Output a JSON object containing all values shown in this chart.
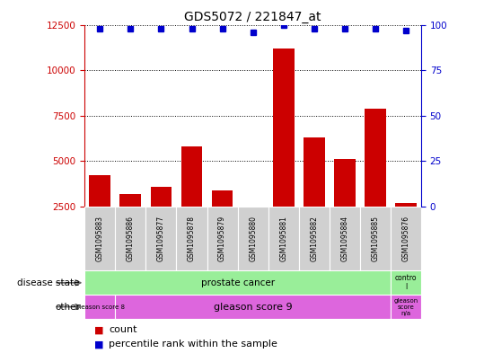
{
  "title": "GDS5072 / 221847_at",
  "samples": [
    "GSM1095883",
    "GSM1095886",
    "GSM1095877",
    "GSM1095878",
    "GSM1095879",
    "GSM1095880",
    "GSM1095881",
    "GSM1095882",
    "GSM1095884",
    "GSM1095885",
    "GSM1095876"
  ],
  "count_values": [
    4200,
    3200,
    3600,
    5800,
    3400,
    2400,
    11200,
    6300,
    5100,
    7900,
    2700
  ],
  "percentile_values": [
    98,
    98,
    98,
    98,
    98,
    96,
    100,
    98,
    98,
    98,
    97
  ],
  "ylim_left": [
    2500,
    12500
  ],
  "ylim_right": [
    0,
    100
  ],
  "yticks_left": [
    2500,
    5000,
    7500,
    10000,
    12500
  ],
  "yticks_right": [
    0,
    25,
    50,
    75,
    100
  ],
  "bar_color": "#cc0000",
  "dot_color": "#0000cc",
  "background_color": "#ffffff",
  "disease_state_label": "prostate cancer",
  "control_label": "contro\nl",
  "gleason8_label": "gleason score 8",
  "gleason9_label": "gleason score 9",
  "gleason_na_label": "gleason\nscore\nn/a",
  "green_color": "#99ee99",
  "magenta_color": "#dd66dd",
  "gray_color": "#d0d0d0",
  "tick_color_left": "#cc0000",
  "tick_color_right": "#0000cc"
}
